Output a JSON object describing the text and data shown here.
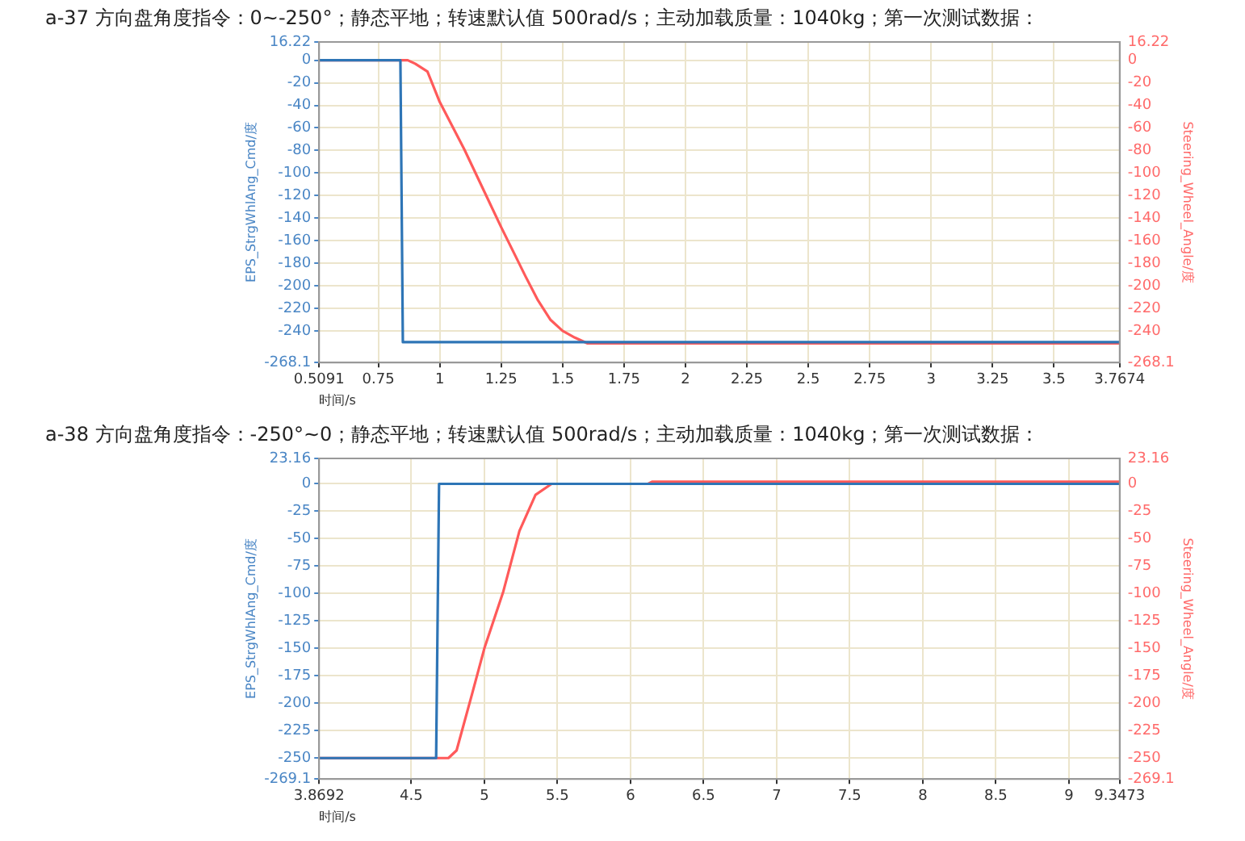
{
  "chart_data": [
    {
      "type": "line",
      "title": "a-37 方向盘角度指令：0~-250°；静态平地；转速默认值 500rad/s；主动加载质量：1040kg；第一次测试数据：",
      "xlabel": "时间/s",
      "ylabel": "EPS_StrgWhlAng_Cmd/度",
      "y2label": "Steering_Wheel_Angle/度",
      "grid": true,
      "legend": false,
      "marker": "none",
      "line_style": "solid",
      "xlim": [
        0.5091,
        3.7674
      ],
      "xticks": [
        0.5091,
        0.75,
        1,
        1.25,
        1.5,
        1.75,
        2,
        2.25,
        2.5,
        2.75,
        3,
        3.25,
        3.5,
        3.7674
      ],
      "ylim": [
        -268.1,
        16.22
      ],
      "yticks": [
        16.22,
        0,
        -20,
        -40,
        -60,
        -80,
        -100,
        -120,
        -140,
        -160,
        -180,
        -200,
        -220,
        -240,
        -268.1
      ],
      "y2lim": [
        -268.1,
        16.22
      ],
      "y2ticks": [
        16.22,
        0,
        -20,
        -40,
        -60,
        -80,
        -100,
        -120,
        -140,
        -160,
        -180,
        -200,
        -220,
        -240,
        -268.1
      ],
      "series": [
        {
          "color": "#2e75b6",
          "x": [
            0.5091,
            0.84,
            0.85,
            3.7674
          ],
          "values": [
            0,
            0,
            -250,
            -250
          ]
        },
        {
          "color": "#ff5a5a",
          "axis": "y2",
          "x": [
            0.5091,
            0.87,
            0.9,
            0.95,
            1.0,
            1.1,
            1.2,
            1.25,
            1.3,
            1.35,
            1.4,
            1.45,
            1.5,
            1.55,
            1.6,
            3.7674
          ],
          "values": [
            0,
            0,
            -3,
            -10,
            -37,
            -79,
            -125,
            -148,
            -170,
            -192,
            -213,
            -230,
            -240,
            -246,
            -251,
            -251
          ]
        }
      ]
    },
    {
      "type": "line",
      "title": "a-38 方向盘角度指令：-250°~0；静态平地；转速默认值 500rad/s；主动加载质量：1040kg；第一次测试数据：",
      "xlabel": "时间/s",
      "ylabel": "EPS_StrgWhlAng_Cmd/度",
      "y2label": "Steering_Wheel_Angle/度",
      "grid": true,
      "legend": false,
      "marker": "none",
      "line_style": "solid",
      "xlim": [
        3.8692,
        9.3473
      ],
      "xticks": [
        3.8692,
        4.5,
        5,
        5.5,
        6,
        6.5,
        7,
        7.5,
        8,
        8.5,
        9,
        9.3473
      ],
      "ylim": [
        -269.1,
        23.16
      ],
      "yticks": [
        23.16,
        0,
        -25,
        -50,
        -75,
        -100,
        -125,
        -150,
        -175,
        -200,
        -225,
        -250,
        -269.1
      ],
      "y2lim": [
        -269.1,
        23.16
      ],
      "y2ticks": [
        23.16,
        0,
        -25,
        -50,
        -75,
        -100,
        -125,
        -150,
        -175,
        -200,
        -225,
        -250,
        -269.1
      ],
      "series": [
        {
          "color": "#2e75b6",
          "x": [
            3.8692,
            4.67,
            4.69,
            9.3473
          ],
          "values": [
            -250,
            -250,
            0,
            0
          ]
        },
        {
          "color": "#ff5a5a",
          "axis": "y2",
          "x": [
            3.8692,
            4.7,
            4.754,
            4.81,
            4.917,
            5.0,
            5.13,
            5.24,
            5.35,
            5.46,
            6.12,
            6.15,
            9.3473
          ],
          "values": [
            -250,
            -250,
            -250,
            -243,
            -191,
            -150,
            -98,
            -43,
            -10,
            0,
            0,
            2,
            2
          ]
        }
      ]
    }
  ]
}
